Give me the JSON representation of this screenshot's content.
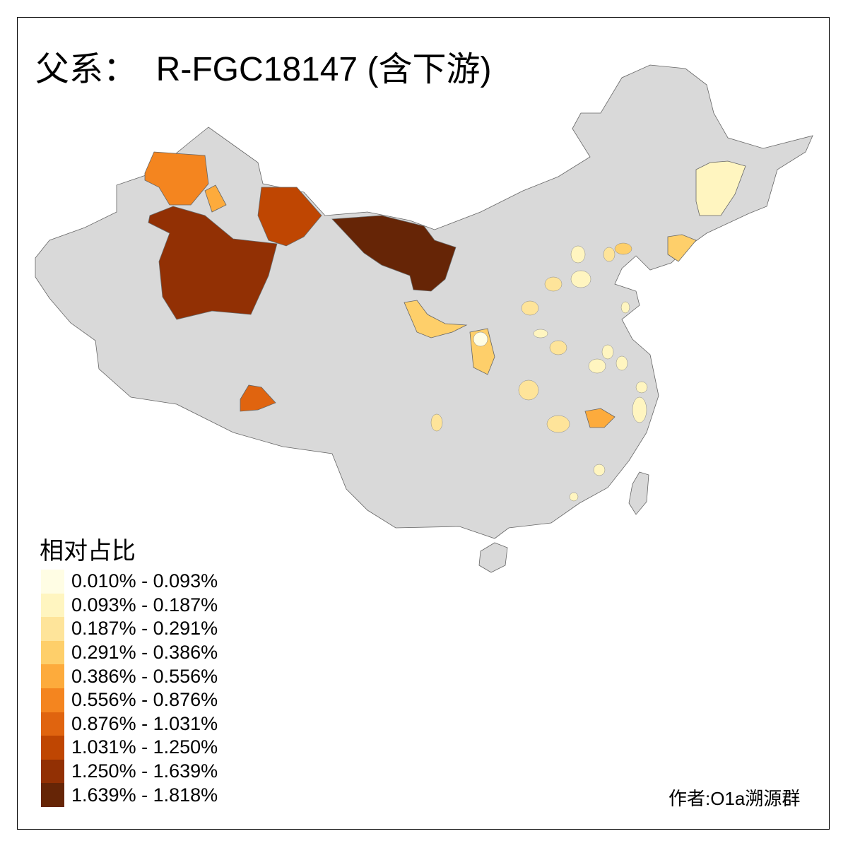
{
  "title": "父系：  R-FGC18147 (含下游)",
  "legend": {
    "title": "相对占比",
    "items": [
      {
        "label": "0.010% - 0.093%",
        "color": "#fffde4"
      },
      {
        "label": "0.093% - 0.187%",
        "color": "#fff5c0"
      },
      {
        "label": "0.187% - 0.291%",
        "color": "#fee49a"
      },
      {
        "label": "0.291% - 0.386%",
        "color": "#fecf6a"
      },
      {
        "label": "0.386% - 0.556%",
        "color": "#fdab3c"
      },
      {
        "label": "0.556% - 0.876%",
        "color": "#f4851f"
      },
      {
        "label": "0.876% - 1.031%",
        "color": "#e0640f"
      },
      {
        "label": "1.031% - 1.250%",
        "color": "#bf4602"
      },
      {
        "label": "1.250% - 1.639%",
        "color": "#923004"
      },
      {
        "label": "1.639% - 1.818%",
        "color": "#662506"
      }
    ]
  },
  "no_data_color": "#d9d9d9",
  "credit": "作者:O1a溯源群"
}
